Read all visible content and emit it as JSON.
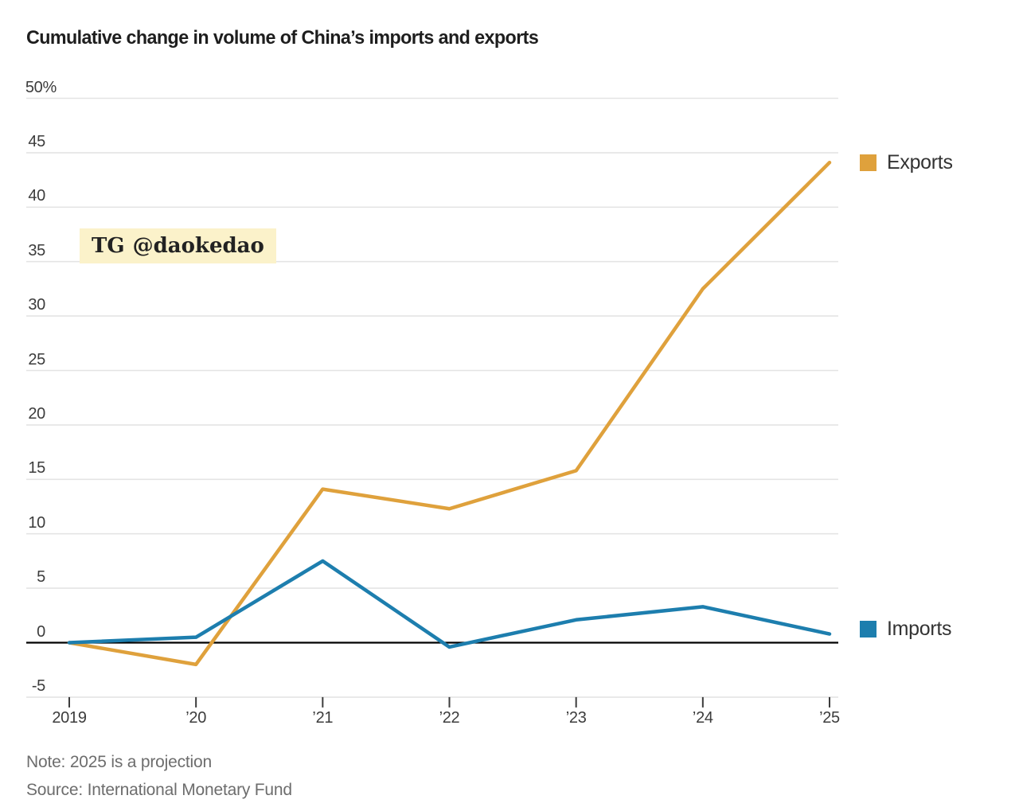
{
  "page": {
    "background": "#ffffff"
  },
  "chart": {
    "title": "Cumulative change in volume of China’s imports and exports"
  },
  "watermark": {
    "prefix": "TG",
    "handle": "@daokedao",
    "background": "#fbf2ca"
  },
  "legend": {
    "exports_label": "Exports",
    "imports_label": "Imports"
  },
  "footer": {
    "note": "Note: 2025 is a projection",
    "source": "Source: International Monetary Fund"
  },
  "chart_data": {
    "type": "line",
    "title": "Cumulative change in volume of China’s imports and exports",
    "x": [
      2019,
      2020,
      2021,
      2022,
      2023,
      2024,
      2025
    ],
    "xtick_labels": [
      "2019",
      "’20",
      "’21",
      "’22",
      "’23",
      "’24",
      "’25"
    ],
    "series": [
      {
        "name": "Exports",
        "color": "#DFA13C",
        "values": [
          0,
          -2,
          14.1,
          12.3,
          15.8,
          32.5,
          44.1
        ]
      },
      {
        "name": "Imports",
        "color": "#1D7EAE",
        "values": [
          0,
          0.5,
          7.5,
          -0.4,
          2.1,
          3.3,
          0.8
        ]
      }
    ],
    "ylim": [
      -5,
      50
    ],
    "yticks": [
      {
        "value": 50,
        "label": "50%"
      },
      {
        "value": 45,
        "label": "45"
      },
      {
        "value": 40,
        "label": "40"
      },
      {
        "value": 35,
        "label": "35"
      },
      {
        "value": 30,
        "label": "30"
      },
      {
        "value": 25,
        "label": "25"
      },
      {
        "value": 20,
        "label": "20"
      },
      {
        "value": 15,
        "label": "15"
      },
      {
        "value": 10,
        "label": "10"
      },
      {
        "value": 5,
        "label": "5"
      },
      {
        "value": 0,
        "label": "0"
      },
      {
        "value": -5,
        "label": "-5"
      }
    ],
    "grid": true,
    "legend_position": "right",
    "colors": {
      "grid": "#e4e4e4",
      "zero_line": "#000000",
      "tick": "#3c3c3c"
    },
    "note": "Note: 2025 is a projection",
    "source": "Source: International Monetary Fund"
  }
}
